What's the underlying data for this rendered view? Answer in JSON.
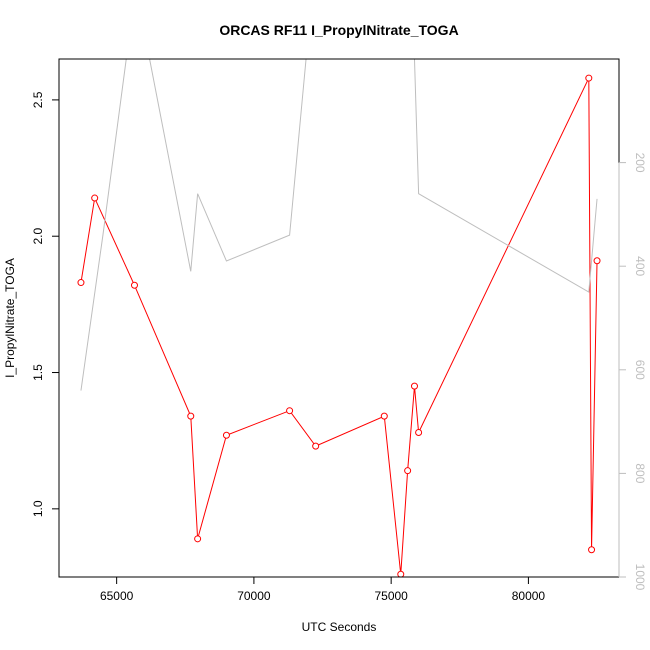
{
  "chart_data": {
    "type": "line",
    "title": "ORCAS RF11 I_PropylNitrate_TOGA",
    "xlabel": "UTC Seconds",
    "ylabel": "I_PropylNitrate_TOGA",
    "xlim": [
      62900,
      83300
    ],
    "ylim": [
      0.75,
      2.65
    ],
    "x_ticks": [
      65000,
      70000,
      75000,
      80000
    ],
    "x_tick_labels": [
      "65000",
      "70000",
      "75000",
      "80000"
    ],
    "y_ticks": [
      1.0,
      1.5,
      2.0,
      2.5
    ],
    "y_tick_labels": [
      "1.0",
      "1.5",
      "2.0",
      "2.5"
    ],
    "y2lim": [
      1000,
      0
    ],
    "y2_ticks": [
      200,
      400,
      600,
      800,
      1000
    ],
    "y2_tick_labels": [
      "200",
      "400",
      "600",
      "800",
      "1000"
    ],
    "grid": false,
    "series": [
      {
        "color": "#ff0000",
        "marker": "circle",
        "axis": "left",
        "x": [
          63700,
          64200,
          65650,
          67700,
          67950,
          69000,
          71300,
          72250,
          74750,
          75350,
          75600,
          75850,
          76000,
          82200,
          82300,
          82500
        ],
        "y": [
          1.83,
          2.14,
          1.82,
          1.34,
          0.89,
          1.27,
          1.36,
          1.23,
          1.34,
          0.76,
          1.14,
          1.45,
          1.28,
          2.58,
          0.85,
          1.91
        ]
      },
      {
        "color": "#bebebe",
        "marker": "none",
        "axis": "right",
        "x": [
          63700,
          64500,
          65350,
          66200,
          67700,
          67950,
          69000,
          71300,
          71900,
          75850,
          76000,
          82200,
          82500
        ],
        "y": [
          640,
          340,
          0,
          0,
          410,
          260,
          390,
          340,
          0,
          0,
          260,
          450,
          270
        ]
      }
    ]
  }
}
